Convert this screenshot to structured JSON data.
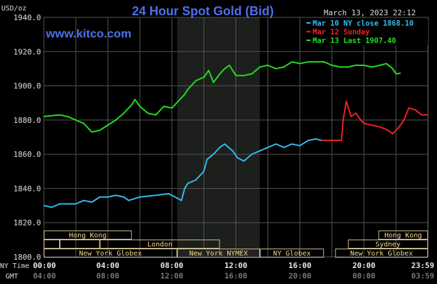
{
  "chart_data": {
    "type": "line",
    "title": "24 Hour Spot Gold (Bid)",
    "watermark": "www.kitco.com",
    "timestamp": "March 13, 2023 22:12",
    "ylabel": "USD/oz",
    "ylim": [
      1800,
      1940
    ],
    "yticks": [
      "1800.0",
      "1820.0",
      "1840.0",
      "1860.0",
      "1880.0",
      "1900.0",
      "1920.0",
      "1940.0"
    ],
    "xlim_hours": [
      0,
      24
    ],
    "ny_time_label": "NY Time",
    "gmt_label": "GMT",
    "xticks_ny": [
      "00:00",
      "04:00",
      "08:00",
      "12:00",
      "16:00",
      "20:00",
      "23:59"
    ],
    "xticks_gmt": [
      "04:00",
      "08:00",
      "12:00",
      "16:00",
      "20:00",
      "00:00",
      "03:59"
    ],
    "nymex_shade_hours": [
      8.33,
      13.5
    ],
    "legend": [
      {
        "label": "Mar 10 NY close 1868.10",
        "color": "#33bbee"
      },
      {
        "label": "Mar 12 Sunday",
        "color": "#ee2222"
      },
      {
        "label": "Mar 13 Last 1907.40",
        "color": "#22dd22"
      }
    ],
    "series": [
      {
        "name": "Mar 10",
        "color": "#33bbee",
        "points": [
          [
            0,
            1830
          ],
          [
            0.5,
            1829
          ],
          [
            1,
            1831
          ],
          [
            2,
            1831
          ],
          [
            2.5,
            1833
          ],
          [
            3,
            1832
          ],
          [
            3.5,
            1835
          ],
          [
            4,
            1835
          ],
          [
            4.5,
            1836
          ],
          [
            5,
            1835
          ],
          [
            5.3,
            1833
          ],
          [
            6,
            1835
          ],
          [
            7,
            1836
          ],
          [
            7.8,
            1837
          ],
          [
            8.2,
            1835
          ],
          [
            8.6,
            1833
          ],
          [
            8.8,
            1840
          ],
          [
            9,
            1843
          ],
          [
            9.5,
            1845
          ],
          [
            10,
            1850
          ],
          [
            10.2,
            1857
          ],
          [
            10.6,
            1860
          ],
          [
            11,
            1864
          ],
          [
            11.3,
            1866
          ],
          [
            11.8,
            1862
          ],
          [
            12.1,
            1858
          ],
          [
            12.5,
            1856
          ],
          [
            13,
            1860
          ],
          [
            13.5,
            1862
          ],
          [
            14,
            1864
          ],
          [
            14.5,
            1866
          ],
          [
            15,
            1864
          ],
          [
            15.5,
            1866
          ],
          [
            16,
            1865
          ],
          [
            16.5,
            1868
          ],
          [
            17,
            1869
          ],
          [
            17.35,
            1868
          ]
        ]
      },
      {
        "name": "Mar 12",
        "color": "#ee2222",
        "points": [
          [
            17.35,
            1868.1
          ],
          [
            18.6,
            1868.1
          ],
          [
            18.7,
            1880
          ],
          [
            18.9,
            1891
          ],
          [
            19.2,
            1882
          ],
          [
            19.5,
            1884
          ],
          [
            19.8,
            1880
          ],
          [
            20,
            1878
          ],
          [
            20.5,
            1877
          ],
          [
            21,
            1876
          ],
          [
            21.5,
            1874
          ],
          [
            21.8,
            1872
          ],
          [
            22.2,
            1876
          ],
          [
            22.5,
            1880
          ],
          [
            22.8,
            1887
          ],
          [
            23.2,
            1886
          ],
          [
            23.6,
            1883
          ],
          [
            24,
            1883
          ]
        ]
      },
      {
        "name": "Mar 13",
        "color": "#22dd22",
        "points": [
          [
            0,
            1882
          ],
          [
            1,
            1883
          ],
          [
            1.5,
            1882
          ],
          [
            2,
            1880
          ],
          [
            2.5,
            1878
          ],
          [
            3,
            1873
          ],
          [
            3.5,
            1874
          ],
          [
            4,
            1877
          ],
          [
            4.5,
            1880
          ],
          [
            5,
            1884
          ],
          [
            5.5,
            1889
          ],
          [
            5.7,
            1892
          ],
          [
            6,
            1888
          ],
          [
            6.5,
            1884
          ],
          [
            7,
            1883
          ],
          [
            7.5,
            1888
          ],
          [
            8,
            1887
          ],
          [
            8.4,
            1891
          ],
          [
            8.8,
            1895
          ],
          [
            9,
            1898
          ],
          [
            9.5,
            1903
          ],
          [
            10,
            1905
          ],
          [
            10.3,
            1909
          ],
          [
            10.6,
            1902
          ],
          [
            11,
            1907
          ],
          [
            11.3,
            1910
          ],
          [
            11.6,
            1912
          ],
          [
            12,
            1906
          ],
          [
            12.5,
            1906
          ],
          [
            13,
            1907
          ],
          [
            13.5,
            1911
          ],
          [
            14,
            1912
          ],
          [
            14.5,
            1910
          ],
          [
            15,
            1911
          ],
          [
            15.5,
            1914
          ],
          [
            16,
            1913
          ],
          [
            16.5,
            1914
          ],
          [
            17.5,
            1914
          ],
          [
            18,
            1912
          ],
          [
            18.5,
            1911
          ],
          [
            19,
            1911
          ],
          [
            19.5,
            1912
          ],
          [
            20,
            1912
          ],
          [
            20.5,
            1911
          ],
          [
            21,
            1912
          ],
          [
            21.4,
            1913
          ],
          [
            21.8,
            1910
          ],
          [
            22,
            1907
          ],
          [
            22.3,
            1907.4
          ]
        ]
      }
    ],
    "sessions": [
      {
        "label": "Hong Kong",
        "row": 0,
        "start": 0,
        "end": 5.5
      },
      {
        "label": "Hong Kong",
        "row": 0,
        "start": 20.9,
        "end": 24
      },
      {
        "label": "",
        "row": 1,
        "start": 0,
        "end": 1
      },
      {
        "label": "",
        "row": 1,
        "start": 1,
        "end": 3.5
      },
      {
        "label": "London",
        "row": 1,
        "start": 3.5,
        "end": 11
      },
      {
        "label": "Sydney",
        "row": 1,
        "start": 19,
        "end": 24
      },
      {
        "label": "New York Globex",
        "row": 2,
        "start": 0,
        "end": 8.33
      },
      {
        "label": "New York NYMEX",
        "row": 2,
        "start": 8.33,
        "end": 13.5
      },
      {
        "label": "NY Globex",
        "row": 2,
        "start": 13.5,
        "end": 17.5
      },
      {
        "label": "New York Globex",
        "row": 2,
        "start": 18.2,
        "end": 24
      }
    ]
  }
}
